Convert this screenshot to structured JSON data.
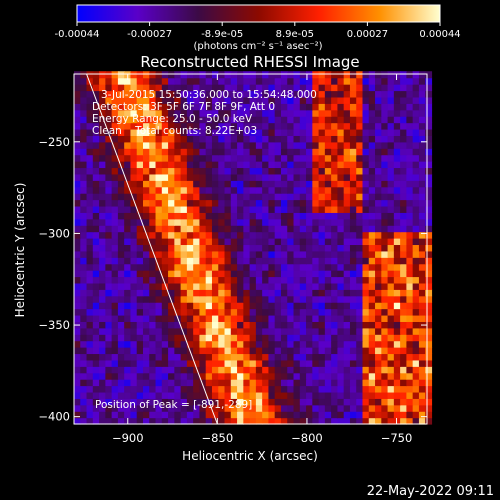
{
  "chart_data": {
    "type": "heatmap",
    "title": "Reconstructed RHESSI Image",
    "xlabel": "Heliocentric X (arcsec)",
    "ylabel": "Heliocentric Y (arcsec)",
    "xlim": [
      -930,
      -733
    ],
    "ylim": [
      -404,
      -213
    ],
    "xticks": [
      -900,
      -850,
      -800,
      -750
    ],
    "yticks": [
      -250,
      -300,
      -350,
      -400
    ],
    "colorbar": {
      "range": [
        -0.00044,
        0.00044
      ],
      "ticks": [
        "-0.00044",
        "-0.00027",
        "-8.9e-05",
        "8.9e-05",
        "0.00027",
        "0.00044"
      ],
      "unit_label": "(photons cm⁻² s⁻¹ asec⁻²)",
      "colormap": [
        "#0000ff",
        "#5a00c8",
        "#3c0a46",
        "#8c0a00",
        "#ff2000",
        "#ff9000",
        "#ffffd0"
      ]
    },
    "annotations": {
      "time_range": "3-Jul-2015 15:50:36.000 to 15:54:48.000",
      "detectors": "Detectors: 3F 5F 6F 7F 8F 9F, Att 0",
      "energy": "Energy Range: 25.0 - 50.0 keV",
      "method_counts": "Clean    Total counts: 8.22E+03",
      "peak": "Position of Peak = [-891,-289]"
    },
    "grid": false,
    "limb_line": [
      [
        -923,
        -213
      ],
      [
        -850,
        -404
      ]
    ],
    "emission_features": [
      {
        "x": [
          -930,
          -875
        ],
        "y": [
          -404,
          -213
        ],
        "note": "bright ridge along solar limb"
      },
      {
        "x": [
          -800,
          -770
        ],
        "y": [
          -290,
          -213
        ],
        "note": "bright source upper right"
      },
      {
        "x": [
          -770,
          -733
        ],
        "y": [
          -404,
          -300
        ],
        "note": "bright source lower right"
      }
    ]
  },
  "footer": {
    "timestamp": "22-May-2022 09:11"
  }
}
